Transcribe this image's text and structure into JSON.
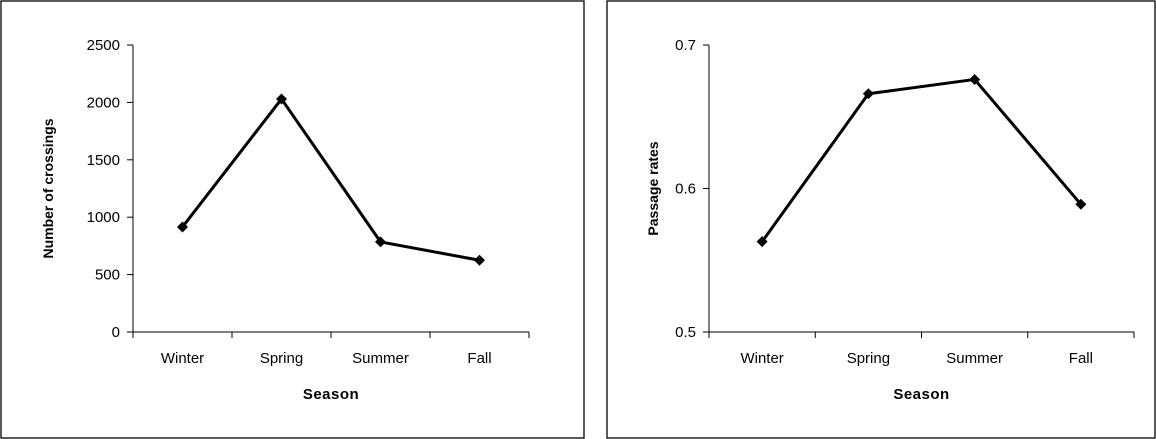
{
  "chart_data": [
    {
      "type": "line",
      "categories": [
        "Winter",
        "Spring",
        "Summer",
        "Fall"
      ],
      "series": [
        {
          "values": [
            915,
            2030,
            785,
            625
          ]
        }
      ],
      "xlabel": "Season",
      "ylabel": "Number of crossings",
      "ylim": [
        0,
        2500
      ],
      "yticks": [
        "0",
        "500",
        "1000",
        "1500",
        "2000",
        "2500"
      ],
      "grid": false,
      "line_color": "#000000"
    },
    {
      "type": "line",
      "categories": [
        "Winter",
        "Spring",
        "Summer",
        "Fall"
      ],
      "series": [
        {
          "values": [
            0.563,
            0.666,
            0.676,
            0.589
          ]
        }
      ],
      "xlabel": "Season",
      "ylabel": "Passage rates",
      "ylim": [
        0.5,
        0.7
      ],
      "yticks": [
        "0.5",
        "0.6",
        "0.7"
      ],
      "grid": false,
      "line_color": "#000000"
    }
  ]
}
